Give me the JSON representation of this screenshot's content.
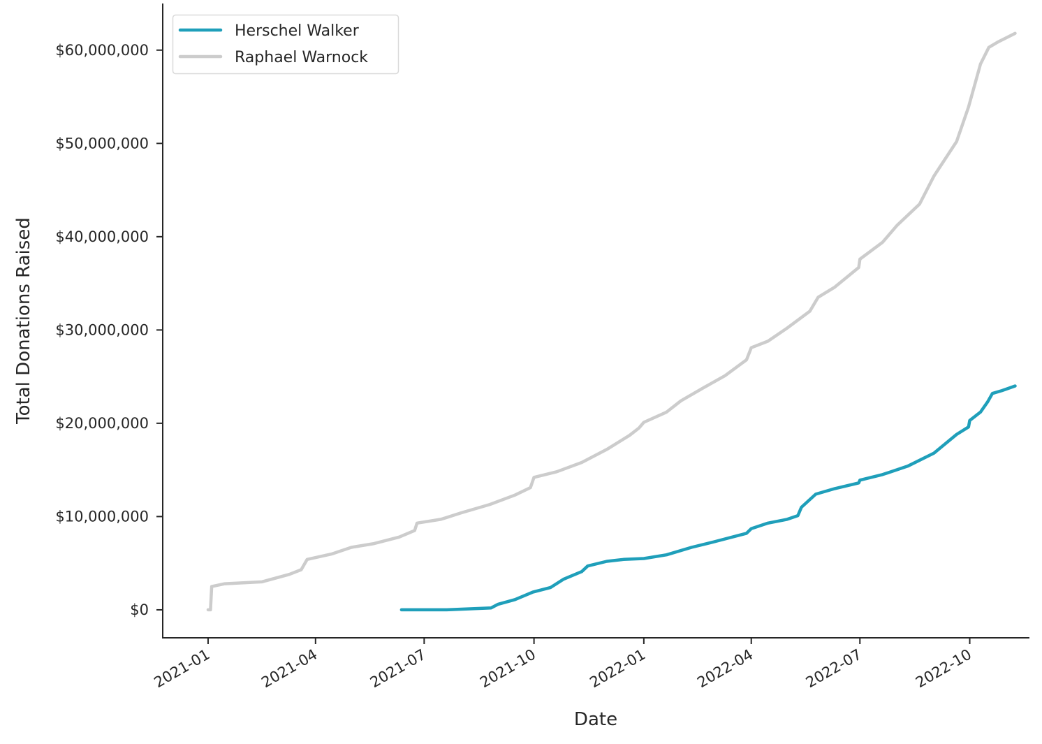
{
  "chart_data": {
    "type": "line",
    "xlabel": "Date",
    "ylabel": "Total Donations Raised",
    "x_ticks": [
      "2021-01",
      "2021-04",
      "2021-07",
      "2021-10",
      "2022-01",
      "2022-04",
      "2022-07",
      "2022-10"
    ],
    "y_ticks": [
      "$0",
      "$10,000,000",
      "$20,000,000",
      "$30,000,000",
      "$40,000,000",
      "$50,000,000",
      "$60,000,000"
    ],
    "y_tick_values": [
      0,
      10000000,
      20000000,
      30000000,
      40000000,
      50000000,
      60000000
    ],
    "xlim": [
      "2020-11-24",
      "2022-11-20"
    ],
    "ylim": [
      -3000000,
      65000000
    ],
    "grid": false,
    "legend_position": "top-left",
    "series": [
      {
        "name": "Herschel Walker",
        "color": "#1f9fba",
        "points": [
          [
            "2021-06-12",
            0
          ],
          [
            "2021-07-01",
            0
          ],
          [
            "2021-07-20",
            0
          ],
          [
            "2021-08-26",
            200000
          ],
          [
            "2021-09-01",
            600000
          ],
          [
            "2021-09-15",
            1100000
          ],
          [
            "2021-09-30",
            1900000
          ],
          [
            "2021-10-15",
            2400000
          ],
          [
            "2021-10-26",
            3300000
          ],
          [
            "2021-11-10",
            4100000
          ],
          [
            "2021-11-15",
            4700000
          ],
          [
            "2021-12-01",
            5200000
          ],
          [
            "2021-12-15",
            5400000
          ],
          [
            "2022-01-01",
            5500000
          ],
          [
            "2022-01-20",
            5900000
          ],
          [
            "2022-02-10",
            6700000
          ],
          [
            "2022-03-01",
            7300000
          ],
          [
            "2022-03-28",
            8200000
          ],
          [
            "2022-04-01",
            8700000
          ],
          [
            "2022-04-15",
            9300000
          ],
          [
            "2022-05-01",
            9700000
          ],
          [
            "2022-05-10",
            10100000
          ],
          [
            "2022-05-13",
            11000000
          ],
          [
            "2022-05-25",
            12400000
          ],
          [
            "2022-06-10",
            13000000
          ],
          [
            "2022-06-30",
            13600000
          ],
          [
            "2022-07-01",
            13900000
          ],
          [
            "2022-07-20",
            14500000
          ],
          [
            "2022-08-10",
            15400000
          ],
          [
            "2022-09-01",
            16800000
          ],
          [
            "2022-09-20",
            18800000
          ],
          [
            "2022-09-30",
            19600000
          ],
          [
            "2022-10-01",
            20300000
          ],
          [
            "2022-10-10",
            21200000
          ],
          [
            "2022-10-16",
            22300000
          ],
          [
            "2022-10-20",
            23200000
          ],
          [
            "2022-10-28",
            23500000
          ],
          [
            "2022-11-08",
            24000000
          ]
        ]
      },
      {
        "name": "Raphael Warnock",
        "color": "#cccccc",
        "points": [
          [
            "2021-01-01",
            0
          ],
          [
            "2021-01-03",
            0
          ],
          [
            "2021-01-04",
            2500000
          ],
          [
            "2021-01-15",
            2800000
          ],
          [
            "2021-02-15",
            3000000
          ],
          [
            "2021-03-10",
            3800000
          ],
          [
            "2021-03-20",
            4300000
          ],
          [
            "2021-03-25",
            5400000
          ],
          [
            "2021-04-15",
            6000000
          ],
          [
            "2021-05-01",
            6700000
          ],
          [
            "2021-05-20",
            7100000
          ],
          [
            "2021-06-10",
            7800000
          ],
          [
            "2021-06-23",
            8500000
          ],
          [
            "2021-06-25",
            9300000
          ],
          [
            "2021-07-15",
            9700000
          ],
          [
            "2021-08-01",
            10400000
          ],
          [
            "2021-08-25",
            11300000
          ],
          [
            "2021-09-15",
            12300000
          ],
          [
            "2021-09-28",
            13100000
          ],
          [
            "2021-10-01",
            14200000
          ],
          [
            "2021-10-20",
            14800000
          ],
          [
            "2021-11-10",
            15800000
          ],
          [
            "2021-12-01",
            17200000
          ],
          [
            "2021-12-20",
            18700000
          ],
          [
            "2021-12-28",
            19500000
          ],
          [
            "2022-01-01",
            20100000
          ],
          [
            "2022-01-20",
            21200000
          ],
          [
            "2022-02-01",
            22400000
          ],
          [
            "2022-02-20",
            23800000
          ],
          [
            "2022-03-10",
            25100000
          ],
          [
            "2022-03-28",
            26800000
          ],
          [
            "2022-04-01",
            28100000
          ],
          [
            "2022-04-15",
            28800000
          ],
          [
            "2022-05-01",
            30200000
          ],
          [
            "2022-05-20",
            32000000
          ],
          [
            "2022-05-27",
            33500000
          ],
          [
            "2022-06-10",
            34600000
          ],
          [
            "2022-06-30",
            36700000
          ],
          [
            "2022-07-01",
            37600000
          ],
          [
            "2022-07-20",
            39400000
          ],
          [
            "2022-08-01",
            41200000
          ],
          [
            "2022-08-20",
            43500000
          ],
          [
            "2022-09-01",
            46500000
          ],
          [
            "2022-09-20",
            50200000
          ],
          [
            "2022-09-30",
            53900000
          ],
          [
            "2022-10-10",
            58500000
          ],
          [
            "2022-10-17",
            60300000
          ],
          [
            "2022-10-25",
            60900000
          ],
          [
            "2022-11-08",
            61800000
          ]
        ]
      }
    ]
  }
}
